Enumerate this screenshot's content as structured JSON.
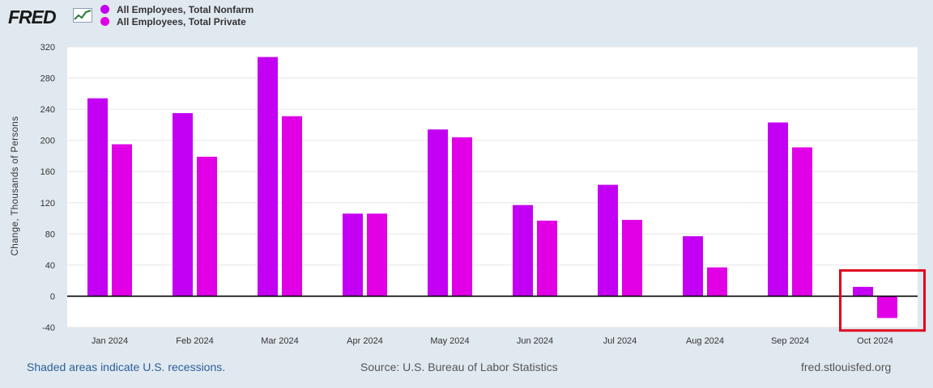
{
  "header": {
    "logo_text": "FRED",
    "logo_icon": "line-graph-icon"
  },
  "legend": [
    {
      "name": "All Employees, Total Nonfarm",
      "color": "#c300f3"
    },
    {
      "name": "All Employees, Total Private",
      "color": "#e100e6"
    }
  ],
  "chart_data": {
    "type": "bar",
    "title": "",
    "xlabel": "",
    "ylabel": "Change, Thousands of Persons",
    "categories": [
      "Jan 2024",
      "Feb 2024",
      "Mar 2024",
      "Apr 2024",
      "May 2024",
      "Jun 2024",
      "Jul 2024",
      "Aug 2024",
      "Sep 2024",
      "Oct 2024"
    ],
    "series": [
      {
        "name": "All Employees, Total Nonfarm",
        "color": "#c300f3",
        "values": [
          254,
          235,
          307,
          106,
          214,
          117,
          143,
          77,
          223,
          12
        ]
      },
      {
        "name": "All Employees, Total Private",
        "color": "#e100e6",
        "values": [
          195,
          179,
          231,
          106,
          204,
          97,
          98,
          37,
          191,
          -28
        ]
      }
    ],
    "ylim": [
      -40,
      320
    ],
    "yticks": [
      -40,
      0,
      40,
      80,
      120,
      160,
      200,
      240,
      280,
      320
    ],
    "grid": true,
    "legend_position": "top-left",
    "annotation": {
      "type": "highlight-box",
      "category": "Oct 2024",
      "color": "#e0001b"
    }
  },
  "footer": {
    "recessions_note": "Shaded areas indicate U.S. recessions.",
    "source": "Source: U.S. Bureau of Labor Statistics",
    "site": "fred.stlouisfed.org"
  }
}
